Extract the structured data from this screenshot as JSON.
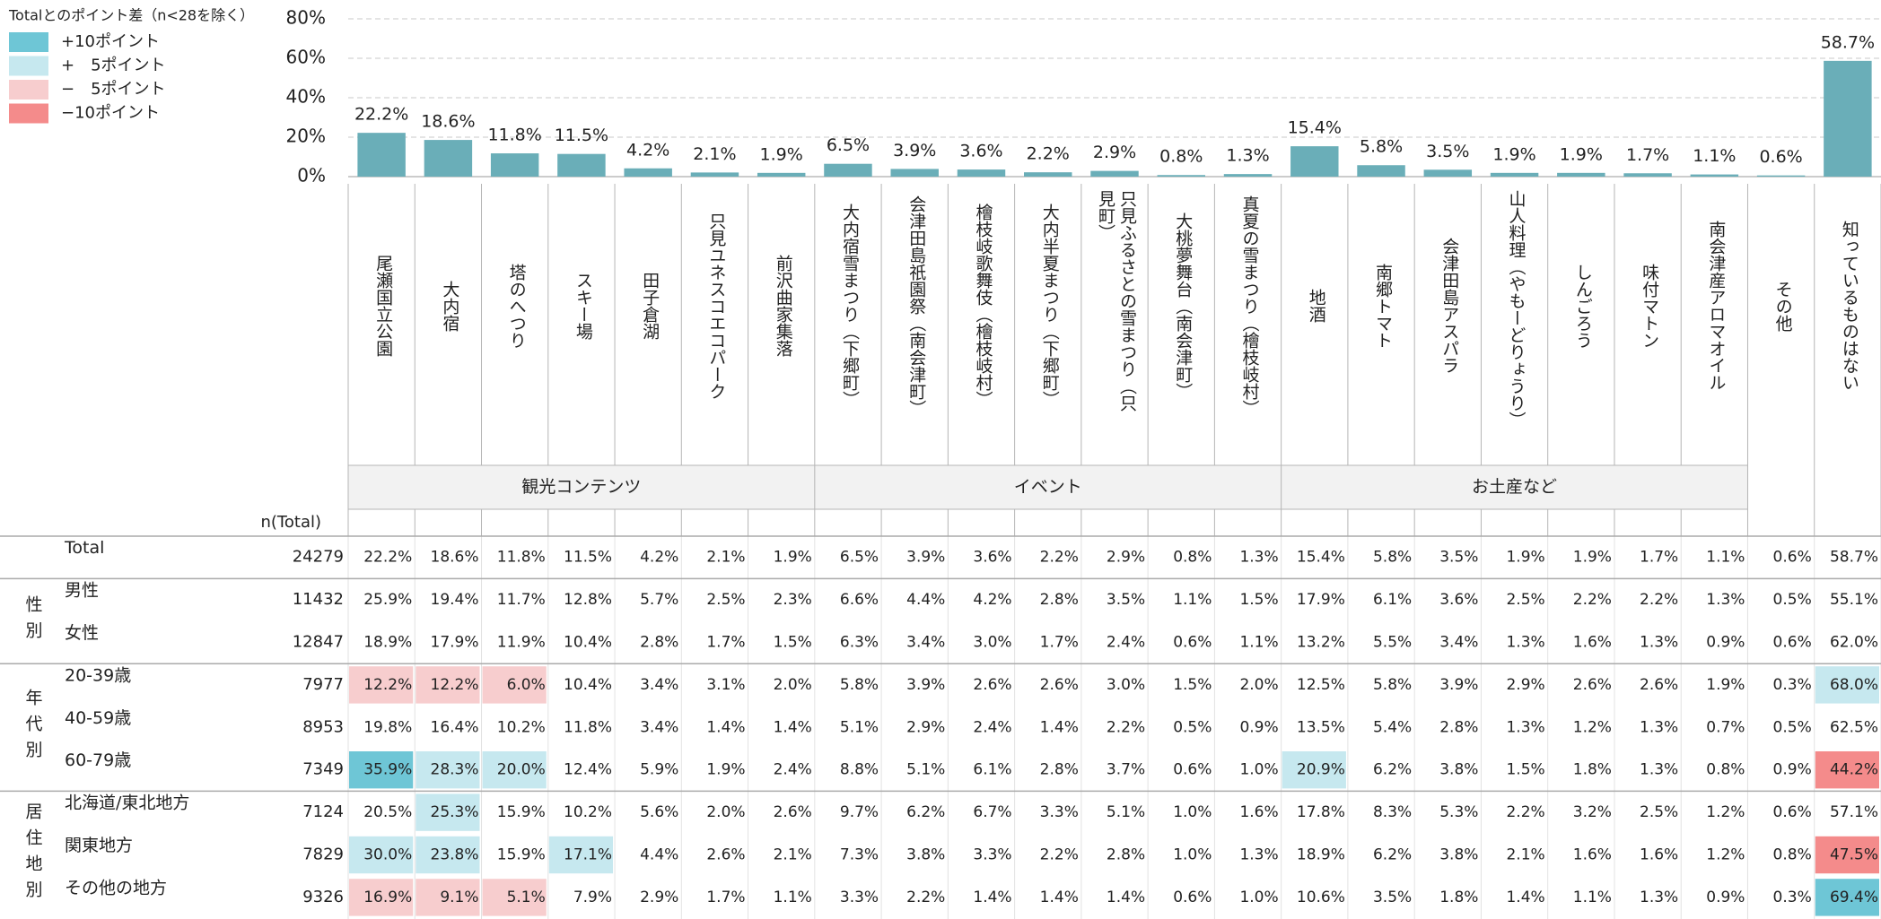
{
  "legend": {
    "title": "Totalとのポイント差（n<28を除く）",
    "items": [
      {
        "label": "+10ポイント",
        "color": "#6ec6d6"
      },
      {
        "label": "+　5ポイント",
        "color": "#c6e8ef"
      },
      {
        "label": "−　5ポイント",
        "color": "#f7cdce"
      },
      {
        "label": "−10ポイント",
        "color": "#f48b8b"
      }
    ]
  },
  "chart_data": {
    "type": "bar",
    "color": "#6aaeb8",
    "grid": true,
    "categories": [
      "尾瀬国立公園",
      "大内宿",
      "塔のへつり",
      "スキー場",
      "田子倉湖",
      "只見ユネスコエコパーク",
      "前沢曲家集落",
      "大内宿雪まつり（下郷町）",
      "会津田島祇園祭（南会津町）",
      "檜枝岐歌舞伎（檜枝岐村）",
      "大内半夏まつり（下郷町）",
      "只見ふるさとの雪まつり（只見町）",
      "大桃夢舞台（南会津町）",
      "真夏の雪まつり（檜枝岐村）",
      "地酒",
      "南郷トマト",
      "会津田島アスパラ",
      "山人料理（やもーどりょうり）",
      "しんごろう",
      "味付マトン",
      "南会津産アロマオイル",
      "その他",
      "知っているものはない"
    ],
    "values": [
      22.2,
      18.6,
      11.8,
      11.5,
      4.2,
      2.1,
      1.9,
      6.5,
      3.9,
      3.6,
      2.2,
      2.9,
      0.8,
      1.3,
      15.4,
      5.8,
      3.5,
      1.9,
      1.9,
      1.7,
      1.1,
      0.6,
      58.7
    ],
    "value_labels": [
      "22.2%",
      "18.6%",
      "11.8%",
      "11.5%",
      "4.2%",
      "2.1%",
      "1.9%",
      "6.5%",
      "3.9%",
      "3.6%",
      "2.2%",
      "2.9%",
      "0.8%",
      "1.3%",
      "15.4%",
      "5.8%",
      "3.5%",
      "1.9%",
      "1.9%",
      "1.7%",
      "1.1%",
      "0.6%",
      "58.7%"
    ],
    "ylim": [
      0,
      80
    ],
    "yticks": [
      {
        "value": 0,
        "label": "0%"
      },
      {
        "value": 20,
        "label": "20%"
      },
      {
        "value": 40,
        "label": "40%"
      },
      {
        "value": 60,
        "label": "60%"
      },
      {
        "value": 80,
        "label": "80%"
      }
    ],
    "groups": [
      {
        "label": "観光コンテンツ",
        "count": 7
      },
      {
        "label": "イベント",
        "count": 7
      },
      {
        "label": "お土産など",
        "count": 7
      }
    ]
  },
  "table": {
    "n_header": "n(Total)",
    "sections": [
      {
        "rows": [
          {
            "label": "Total",
            "n": 24279,
            "values": [
              "22.2%",
              "18.6%",
              "11.8%",
              "11.5%",
              "4.2%",
              "2.1%",
              "1.9%",
              "6.5%",
              "3.9%",
              "3.6%",
              "2.2%",
              "2.9%",
              "0.8%",
              "1.3%",
              "15.4%",
              "5.8%",
              "3.5%",
              "1.9%",
              "1.9%",
              "1.7%",
              "1.1%",
              "0.6%",
              "58.7%"
            ],
            "highlights": []
          }
        ]
      },
      {
        "label": "性別",
        "rows": [
          {
            "label": "男性",
            "n": 11432,
            "values": [
              "25.9%",
              "19.4%",
              "11.7%",
              "12.8%",
              "5.7%",
              "2.5%",
              "2.3%",
              "6.6%",
              "4.4%",
              "4.2%",
              "2.8%",
              "3.5%",
              "1.1%",
              "1.5%",
              "17.9%",
              "6.1%",
              "3.6%",
              "2.5%",
              "2.2%",
              "2.2%",
              "1.3%",
              "0.5%",
              "55.1%"
            ],
            "highlights": []
          },
          {
            "label": "女性",
            "n": 12847,
            "values": [
              "18.9%",
              "17.9%",
              "11.9%",
              "10.4%",
              "2.8%",
              "1.7%",
              "1.5%",
              "6.3%",
              "3.4%",
              "3.0%",
              "1.7%",
              "2.4%",
              "0.6%",
              "1.1%",
              "13.2%",
              "5.5%",
              "3.4%",
              "1.3%",
              "1.6%",
              "1.3%",
              "0.9%",
              "0.6%",
              "62.0%"
            ],
            "highlights": []
          }
        ]
      },
      {
        "label": "年代別",
        "rows": [
          {
            "label": "20-39歳",
            "n": 7977,
            "values": [
              "12.2%",
              "12.2%",
              "6.0%",
              "10.4%",
              "3.4%",
              "3.1%",
              "2.0%",
              "5.8%",
              "3.9%",
              "2.6%",
              "2.6%",
              "3.0%",
              "1.5%",
              "2.0%",
              "12.5%",
              "5.8%",
              "3.9%",
              "2.9%",
              "2.6%",
              "2.6%",
              "1.9%",
              "0.3%",
              "68.0%"
            ],
            "highlights": [
              {
                "col": 0,
                "level": 2
              },
              {
                "col": 1,
                "level": 2
              },
              {
                "col": 2,
                "level": 2
              },
              {
                "col": 22,
                "level": 1
              }
            ]
          },
          {
            "label": "40-59歳",
            "n": 8953,
            "values": [
              "19.8%",
              "16.4%",
              "10.2%",
              "11.8%",
              "3.4%",
              "1.4%",
              "1.4%",
              "5.1%",
              "2.9%",
              "2.4%",
              "1.4%",
              "2.2%",
              "0.5%",
              "0.9%",
              "13.5%",
              "5.4%",
              "2.8%",
              "1.3%",
              "1.2%",
              "1.3%",
              "0.7%",
              "0.5%",
              "62.5%"
            ],
            "highlights": []
          },
          {
            "label": "60-79歳",
            "n": 7349,
            "values": [
              "35.9%",
              "28.3%",
              "20.0%",
              "12.4%",
              "5.9%",
              "1.9%",
              "2.4%",
              "8.8%",
              "5.1%",
              "6.1%",
              "2.8%",
              "3.7%",
              "0.6%",
              "1.0%",
              "20.9%",
              "6.2%",
              "3.8%",
              "1.5%",
              "1.8%",
              "1.3%",
              "0.8%",
              "0.9%",
              "44.2%"
            ],
            "highlights": [
              {
                "col": 0,
                "level": 0
              },
              {
                "col": 1,
                "level": 1
              },
              {
                "col": 2,
                "level": 1
              },
              {
                "col": 14,
                "level": 1
              },
              {
                "col": 22,
                "level": 3
              }
            ]
          }
        ]
      },
      {
        "label": "居住地別",
        "rows": [
          {
            "label": "北海道/東北地方",
            "n": 7124,
            "values": [
              "20.5%",
              "25.3%",
              "15.9%",
              "10.2%",
              "5.6%",
              "2.0%",
              "2.6%",
              "9.7%",
              "6.2%",
              "6.7%",
              "3.3%",
              "5.1%",
              "1.0%",
              "1.6%",
              "17.8%",
              "8.3%",
              "5.3%",
              "2.2%",
              "3.2%",
              "2.5%",
              "1.2%",
              "0.6%",
              "57.1%"
            ],
            "highlights": [
              {
                "col": 1,
                "level": 1
              }
            ]
          },
          {
            "label": "関東地方",
            "n": 7829,
            "values": [
              "30.0%",
              "23.8%",
              "15.9%",
              "17.1%",
              "4.4%",
              "2.6%",
              "2.1%",
              "7.3%",
              "3.8%",
              "3.3%",
              "2.2%",
              "2.8%",
              "1.0%",
              "1.3%",
              "18.9%",
              "6.2%",
              "3.8%",
              "2.1%",
              "1.6%",
              "1.6%",
              "1.2%",
              "0.8%",
              "47.5%"
            ],
            "highlights": [
              {
                "col": 0,
                "level": 1
              },
              {
                "col": 1,
                "level": 1
              },
              {
                "col": 3,
                "level": 1
              },
              {
                "col": 22,
                "level": 3
              }
            ]
          },
          {
            "label": "その他の地方",
            "n": 9326,
            "values": [
              "16.9%",
              "9.1%",
              "5.1%",
              "7.9%",
              "2.9%",
              "1.7%",
              "1.1%",
              "3.3%",
              "2.2%",
              "1.4%",
              "1.4%",
              "1.4%",
              "0.6%",
              "1.0%",
              "10.6%",
              "3.5%",
              "1.8%",
              "1.4%",
              "1.1%",
              "1.3%",
              "0.9%",
              "0.3%",
              "69.4%"
            ],
            "highlights": [
              {
                "col": 0,
                "level": 2
              },
              {
                "col": 1,
                "level": 2
              },
              {
                "col": 2,
                "level": 2
              },
              {
                "col": 22,
                "level": 0
              }
            ]
          }
        ]
      }
    ]
  }
}
